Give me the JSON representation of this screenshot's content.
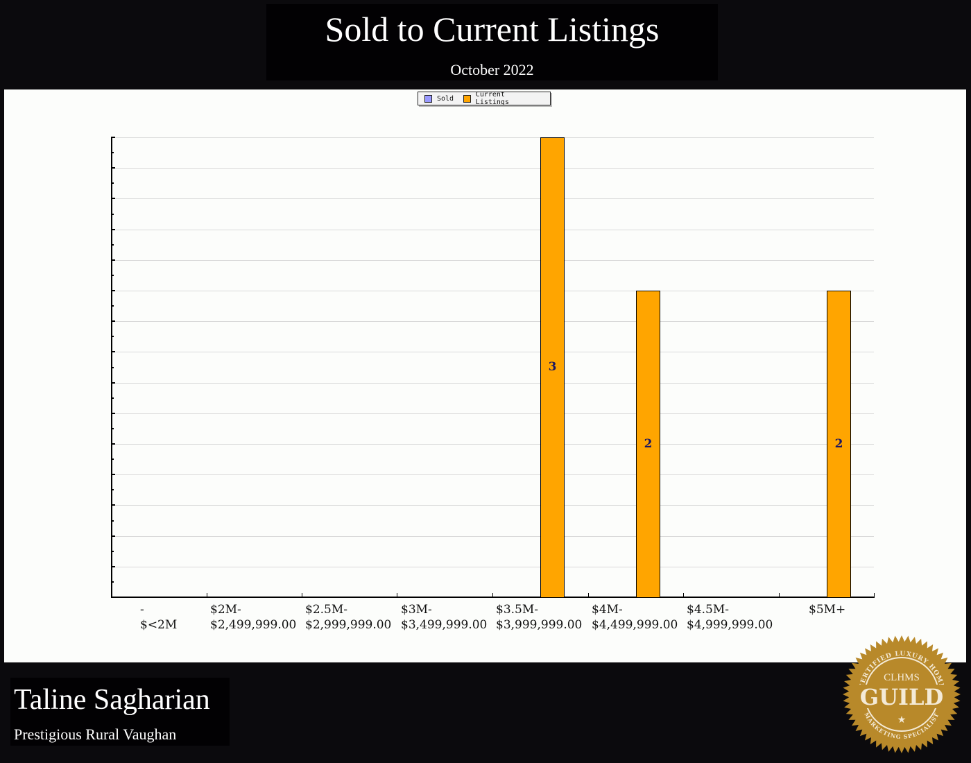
{
  "header": {
    "title": "Sold to Current Listings",
    "subtitle": "October 2022"
  },
  "legend": [
    {
      "label": "Sold",
      "color": "#9999ff"
    },
    {
      "label": "Current Listings",
      "color": "#ffa500"
    }
  ],
  "agent": {
    "name": "Taline Sagharian",
    "area": "Prestigious Rural Vaughan"
  },
  "badge": {
    "top_text": "CERTIFIED LUXURY HOME",
    "acronym": "CLHMS",
    "main_text": "GUILD",
    "bottom_text": "MARKETING SPECIALIST",
    "color": "#b8892a"
  },
  "x_labels": [
    {
      "line1": "-",
      "line2": "$<2M"
    },
    {
      "line1": "$2M-",
      "line2": "$2,499,999.00"
    },
    {
      "line1": "$2.5M-",
      "line2": "$2,999,999.00"
    },
    {
      "line1": "$3M-",
      "line2": "$3,499,999.00"
    },
    {
      "line1": "$3.5M-",
      "line2": "$3,999,999.00"
    },
    {
      "line1": "$4M-",
      "line2": "$4,499,999.00"
    },
    {
      "line1": "$4.5M-",
      "line2": "$4,999,999.00"
    },
    {
      "line1": "$5M+",
      "line2": ""
    }
  ],
  "bar_labels": {
    "b4": "3",
    "b5": "2",
    "b7": "2"
  },
  "chart_data": {
    "type": "bar",
    "title": "Sold to Current Listings",
    "subtitle": "October 2022",
    "xlabel": "",
    "ylabel": "",
    "categories": [
      "- $<2M",
      "$2M- $2,499,999.00",
      "$2.5M- $2,999,999.00",
      "$3M- $3,499,999.00",
      "$3.5M- $3,999,999.00",
      "$4M- $4,499,999.00",
      "$4.5M- $4,999,999.00",
      "$5M+"
    ],
    "series": [
      {
        "name": "Sold",
        "color": "#9999ff",
        "values": [
          0,
          0,
          0,
          0,
          0,
          0,
          0,
          0
        ]
      },
      {
        "name": "Current Listings",
        "color": "#ffa500",
        "values": [
          0,
          0,
          0,
          0,
          3,
          2,
          0,
          2
        ]
      }
    ],
    "ylim": [
      0,
      3
    ],
    "y_tick_labels_shown": false,
    "grid": true,
    "legend_position": "top-center"
  }
}
